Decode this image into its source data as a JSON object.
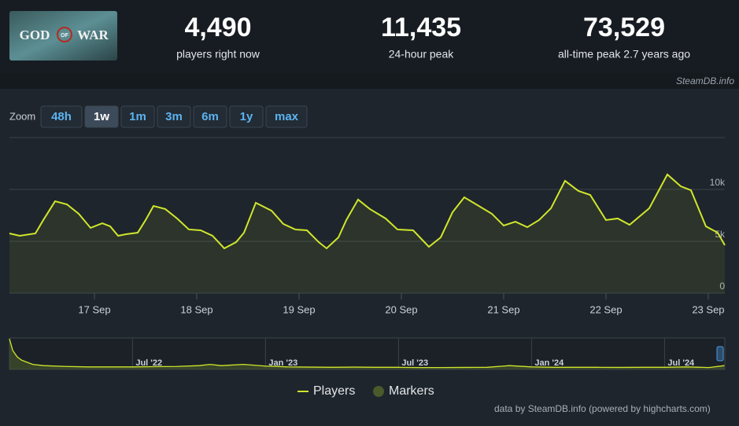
{
  "game": {
    "logo": [
      "GOD",
      "OF",
      "WAR"
    ]
  },
  "stats": [
    {
      "value": "4,490",
      "label": "players right now"
    },
    {
      "value": "11,435",
      "label": "24-hour peak"
    },
    {
      "value": "73,529",
      "label": "all-time peak 2.7 years ago"
    }
  ],
  "site": "SteamDB.info",
  "zoom": {
    "label": "Zoom",
    "buttons": [
      "48h",
      "1w",
      "1m",
      "3m",
      "6m",
      "1y",
      "max"
    ],
    "active": 1
  },
  "credits": "data by SteamDB.info (powered by highcharts.com)",
  "chart_data": [
    {
      "type": "line",
      "x": [
        16.169,
        16.269,
        16.423,
        16.5,
        16.615,
        16.731,
        16.846,
        16.962,
        17.077,
        17.154,
        17.231,
        17.308,
        17.423,
        17.5,
        17.577,
        17.692,
        17.808,
        17.923,
        18.038,
        18.154,
        18.269,
        18.385,
        18.462,
        18.577,
        18.731,
        18.846,
        18.962,
        19.077,
        19.192,
        19.269,
        19.385,
        19.462,
        19.577,
        19.692,
        19.846,
        19.962,
        20.115,
        20.269,
        20.385,
        20.5,
        20.615,
        20.731,
        20.885,
        21.0,
        21.115,
        21.231,
        21.346,
        21.462,
        21.6,
        21.731,
        21.846,
        22.0,
        22.115,
        22.231,
        22.423,
        22.6,
        22.731,
        22.831,
        22.977,
        23.092,
        23.162
      ],
      "series": [
        {
          "name": "Players",
          "color": "#cfe62c",
          "values": [
            5760,
            5530,
            5760,
            7050,
            8860,
            8560,
            7650,
            6290,
            6740,
            6440,
            5530,
            5680,
            5830,
            7050,
            8410,
            8110,
            7200,
            6140,
            6060,
            5530,
            4320,
            4920,
            5830,
            8710,
            7950,
            6670,
            6140,
            6060,
            4920,
            4320,
            5380,
            7050,
            9020,
            8110,
            7200,
            6140,
            6060,
            4470,
            5380,
            7800,
            9240,
            8560,
            7650,
            6520,
            6890,
            6360,
            7050,
            8180,
            10830,
            9850,
            9470,
            7050,
            7200,
            6590,
            8180,
            11440,
            10300,
            9920,
            6440,
            5830,
            4620
          ]
        }
      ],
      "marker_series": {
        "name": "Markers",
        "color": "#4a5a2b"
      },
      "xlim": [
        16.169,
        23.162
      ],
      "xticks": [
        {
          "value": 17,
          "label": "17 Sep"
        },
        {
          "value": 18,
          "label": "18 Sep"
        },
        {
          "value": 19,
          "label": "19 Sep"
        },
        {
          "value": 20,
          "label": "20 Sep"
        },
        {
          "value": 21,
          "label": "21 Sep"
        },
        {
          "value": 22,
          "label": "22 Sep"
        },
        {
          "value": 23,
          "label": "23 Sep"
        }
      ],
      "ylim": [
        0,
        15000
      ],
      "yticks": [
        0,
        {
          "value": 5000,
          "label": "5k"
        },
        {
          "value": 10000,
          "label": "10k"
        }
      ],
      "grid": true
    },
    {
      "type": "area",
      "x": [
        0.45,
        0.6,
        0.8,
        1,
        1.5,
        2,
        3,
        4,
        5,
        6,
        7,
        8,
        9,
        9.5,
        10,
        11,
        12,
        13,
        14,
        15,
        16,
        17,
        18,
        19,
        20,
        21,
        22,
        23,
        24,
        25,
        26,
        27,
        28,
        29,
        30,
        31,
        32,
        32.7
      ],
      "values": [
        73000,
        45000,
        30000,
        22000,
        12000,
        9000,
        7000,
        6000,
        6000,
        6000,
        6500,
        7000,
        9000,
        12000,
        9000,
        12000,
        8000,
        6000,
        5500,
        5000,
        5500,
        5000,
        5000,
        4500,
        4500,
        4800,
        5000,
        9000,
        6000,
        5000,
        5000,
        5000,
        4800,
        5000,
        5000,
        6000,
        4500,
        9000
      ],
      "color": "#cfe62c",
      "xlim": [
        0.45,
        32.72
      ],
      "xticks": [
        {
          "value": 6,
          "label": "Jul '22"
        },
        {
          "value": 12,
          "label": "Jan '23"
        },
        {
          "value": 18,
          "label": "Jul '23"
        },
        {
          "value": 24,
          "label": "Jan '24"
        },
        {
          "value": 30,
          "label": "Jul '24"
        }
      ],
      "ylim": [
        0,
        75000
      ]
    }
  ]
}
